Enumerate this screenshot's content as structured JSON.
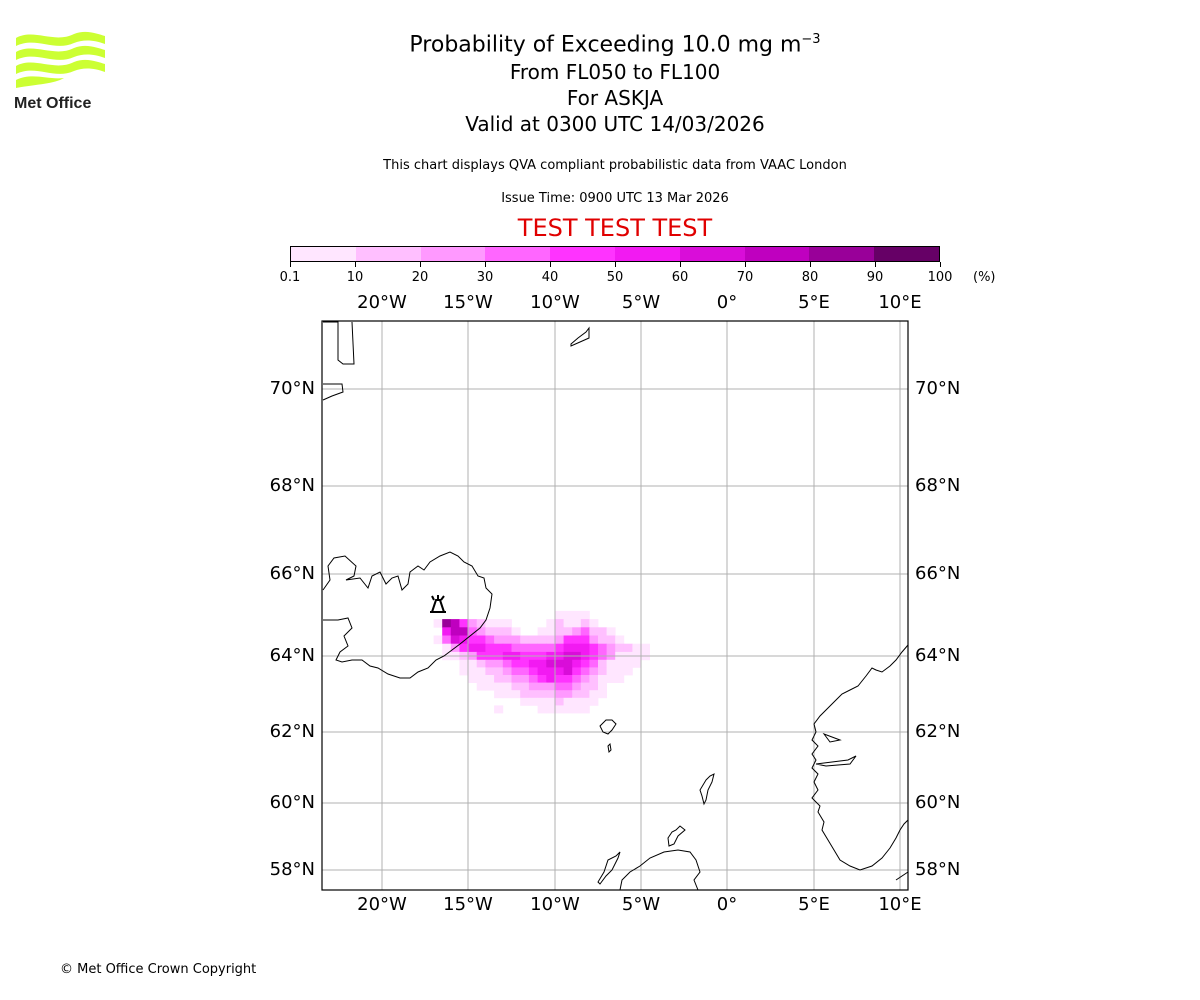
{
  "logo": {
    "name": "Met Office",
    "color": "#ccff33"
  },
  "title": {
    "line1": "Probability of Exceeding 10.0 mg m",
    "line1_sup": "−3",
    "line2": "From FL050 to FL100",
    "line3": "For ASKJA",
    "line4": "Valid at 0300 UTC 14/03/2026"
  },
  "subtitle": "This chart displays QVA compliant probabilistic data from VAAC London",
  "issue_time": "Issue Time: 0900 UTC 13 Mar 2026",
  "test_banner": "TEST TEST TEST",
  "colorbar": {
    "unit": "(%)",
    "ticks": [
      "0.1",
      "10",
      "20",
      "30",
      "40",
      "50",
      "60",
      "70",
      "80",
      "90",
      "100"
    ],
    "colors": [
      "#ffe6ff",
      "#ffbfff",
      "#ff99ff",
      "#ff66ff",
      "#ff33ff",
      "#f21af2",
      "#d90dd9",
      "#bf00bf",
      "#990099",
      "#660066"
    ]
  },
  "footer": "© Met Office Crown Copyright",
  "chart_data": {
    "type": "heatmap",
    "title": "Probability of Exceeding 10.0 mg m-3, FL050 to FL100, ASKJA, Valid 0300 UTC 14/03/2026",
    "value_unit": "%",
    "bins": [
      0.1,
      10,
      20,
      30,
      40,
      50,
      60,
      70,
      80,
      90,
      100
    ],
    "x_axis": {
      "label": "longitude",
      "ticks": [
        "20°W",
        "15°W",
        "10°W",
        "5°W",
        "0°",
        "5°E",
        "10°E"
      ],
      "tick_values": [
        -20,
        -15,
        -10,
        -5,
        0,
        5,
        10
      ],
      "range": [
        -23.5,
        10.5
      ]
    },
    "y_axis": {
      "label": "latitude",
      "ticks": [
        "70°N",
        "68°N",
        "66°N",
        "64°N",
        "62°N",
        "60°N",
        "58°N"
      ],
      "tick_values": [
        70,
        68,
        66,
        64,
        62,
        60,
        58
      ],
      "range": [
        57.5,
        71.5
      ]
    },
    "grid": true,
    "legend": "top colorbar",
    "volcano": {
      "name": "ASKJA",
      "lon": -16.75,
      "lat": 65.0
    },
    "cell_grid": {
      "lon0": -17.0,
      "dlon": 0.5,
      "lat0": 65.1,
      "dlat": -0.2
    },
    "cells": [
      [
        0,
        0,
        0,
        0,
        0,
        0,
        0,
        0,
        0,
        0,
        0,
        0,
        0,
        0,
        1,
        1,
        1,
        1,
        0,
        0,
        0,
        0,
        0,
        0,
        0
      ],
      [
        1,
        9,
        8,
        5,
        3,
        2,
        1,
        1,
        1,
        0,
        0,
        0,
        0,
        1,
        2,
        1,
        1,
        2,
        1,
        0,
        0,
        0,
        0,
        0,
        0
      ],
      [
        0,
        6,
        8,
        8,
        4,
        3,
        2,
        2,
        2,
        1,
        0,
        0,
        1,
        1,
        2,
        2,
        3,
        4,
        2,
        2,
        1,
        0,
        0,
        0,
        0
      ],
      [
        1,
        4,
        7,
        6,
        5,
        5,
        4,
        3,
        3,
        3,
        2,
        2,
        2,
        2,
        3,
        5,
        5,
        5,
        3,
        2,
        2,
        1,
        0,
        0,
        0
      ],
      [
        0,
        1,
        3,
        5,
        6,
        6,
        5,
        5,
        5,
        4,
        4,
        4,
        4,
        4,
        5,
        6,
        6,
        6,
        5,
        4,
        3,
        2,
        2,
        1,
        1
      ],
      [
        0,
        1,
        1,
        2,
        3,
        5,
        5,
        5,
        6,
        6,
        5,
        5,
        5,
        6,
        6,
        7,
        7,
        6,
        5,
        4,
        3,
        1,
        1,
        1,
        1
      ],
      [
        0,
        0,
        0,
        1,
        1,
        2,
        3,
        3,
        4,
        5,
        5,
        6,
        6,
        7,
        7,
        7,
        6,
        5,
        4,
        2,
        1,
        1,
        1,
        1,
        0
      ],
      [
        0,
        0,
        0,
        1,
        1,
        1,
        2,
        2,
        3,
        4,
        4,
        5,
        6,
        6,
        6,
        7,
        5,
        4,
        3,
        2,
        1,
        1,
        1,
        0,
        0
      ],
      [
        0,
        0,
        0,
        0,
        1,
        1,
        1,
        2,
        2,
        3,
        3,
        4,
        5,
        6,
        5,
        5,
        4,
        3,
        2,
        1,
        1,
        1,
        0,
        0,
        0
      ],
      [
        0,
        0,
        0,
        0,
        0,
        1,
        1,
        1,
        1,
        2,
        2,
        3,
        3,
        3,
        4,
        4,
        3,
        2,
        2,
        1,
        0,
        0,
        0,
        0,
        0
      ],
      [
        0,
        0,
        0,
        0,
        0,
        0,
        0,
        1,
        1,
        1,
        2,
        2,
        2,
        2,
        3,
        3,
        2,
        2,
        1,
        1,
        0,
        0,
        0,
        0,
        0
      ],
      [
        0,
        0,
        0,
        0,
        0,
        0,
        0,
        0,
        0,
        0,
        1,
        1,
        1,
        1,
        2,
        1,
        1,
        1,
        1,
        0,
        0,
        0,
        0,
        0,
        0
      ],
      [
        0,
        0,
        0,
        0,
        0,
        0,
        0,
        1,
        0,
        0,
        0,
        0,
        1,
        1,
        1,
        1,
        1,
        1,
        0,
        0,
        0,
        0,
        0,
        0,
        0
      ]
    ]
  }
}
